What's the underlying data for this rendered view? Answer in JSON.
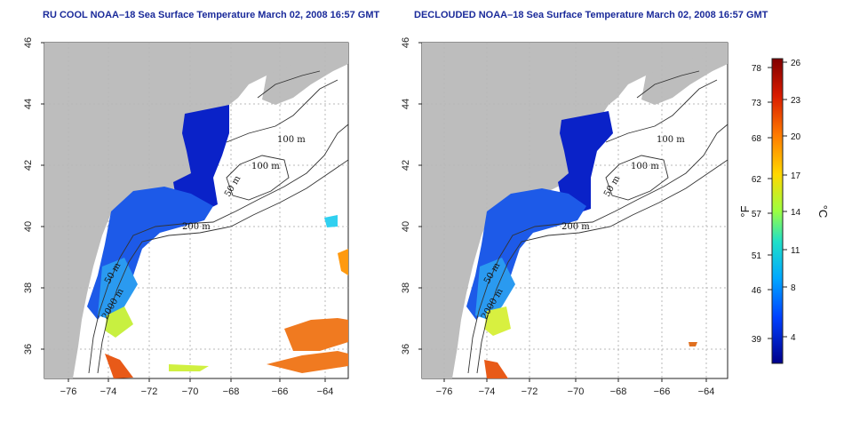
{
  "titles": {
    "left": "RU COOL NOAA–18 Sea Surface Temperature March 02, 2008 16:57 GMT",
    "right": "DECLOUDED NOAA–18 Sea Surface Temperature March 02, 2008 16:57 GMT"
  },
  "axes": {
    "lat_ticks": [
      "46",
      "44",
      "42",
      "40",
      "38",
      "36"
    ],
    "lon_ticks": [
      "−76",
      "−74",
      "−72",
      "−70",
      "−68",
      "−66",
      "−64"
    ]
  },
  "contour_labels": {
    "left": [
      "100 m",
      "100 m",
      "50 m",
      "200 m",
      "50 m",
      "2000 m"
    ],
    "right": [
      "100 m",
      "100 m",
      "50 m",
      "200 m",
      "50 m",
      "2000 m"
    ]
  },
  "colorbar": {
    "fahrenheit_unit": "°F",
    "celsius_unit": "°C",
    "fahrenheit_ticks": [
      "78",
      "73",
      "68",
      "62",
      "57",
      "51",
      "46",
      "39"
    ],
    "celsius_ticks": [
      "26",
      "23",
      "20",
      "17",
      "14",
      "11",
      "8",
      "4"
    ],
    "colors": [
      "#800000",
      "#e02000",
      "#ff7000",
      "#ffd000",
      "#a0ff40",
      "#20e0c0",
      "#00a0ff",
      "#0040ff",
      "#0000c0",
      "#000080"
    ]
  },
  "colors": {
    "land": "#bdbdbd",
    "ocean": "#ffffff",
    "cold_water": "#0a22c8",
    "grid": "#b8b8b8"
  }
}
